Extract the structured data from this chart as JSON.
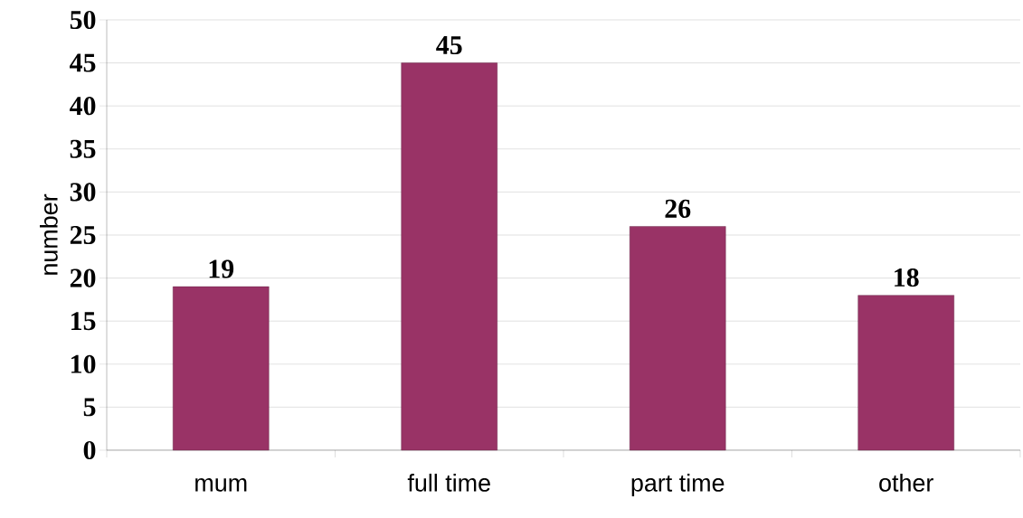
{
  "chart_data": {
    "type": "bar",
    "ylabel": "number",
    "categories": [
      "mum",
      "full time",
      "part time",
      "other"
    ],
    "values": [
      19,
      45,
      26,
      18
    ],
    "color": "#993366",
    "ylim": [
      0,
      50
    ],
    "yticks": [
      0,
      5,
      10,
      15,
      20,
      25,
      30,
      35,
      40,
      45,
      50
    ],
    "grid": "y",
    "data_labels": true
  }
}
